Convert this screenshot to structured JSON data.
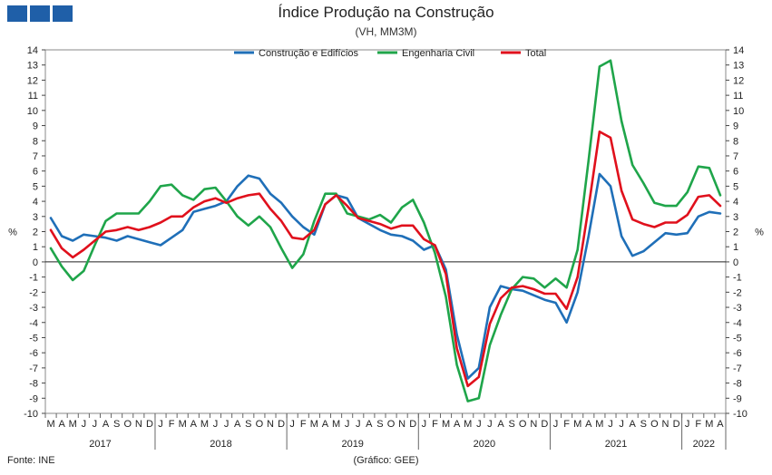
{
  "page": {
    "title": "Índice Produção na Construção",
    "subtitle": "(VH, MM3M)",
    "source": "Fonte: INE",
    "credit": "(Gráfico: GEE)"
  },
  "colors": {
    "logo": "#1f5fa8"
  },
  "chart_data": {
    "type": "line",
    "title": "Índice Produção na Construção",
    "subtitle": "(VH, MM3M)",
    "ylabel": "%",
    "ylim": [
      -10,
      14
    ],
    "yticks": [
      -10,
      -9,
      -8,
      -7,
      -6,
      -5,
      -4,
      -3,
      -2,
      -1,
      0,
      1,
      2,
      3,
      4,
      5,
      6,
      7,
      8,
      9,
      10,
      11,
      12,
      13,
      14
    ],
    "grid": false,
    "legend": "top-center",
    "x": [
      "M",
      "A",
      "M",
      "J",
      "J",
      "A",
      "S",
      "O",
      "N",
      "D",
      "J",
      "F",
      "M",
      "A",
      "M",
      "J",
      "J",
      "A",
      "S",
      "O",
      "N",
      "D",
      "J",
      "F",
      "M",
      "A",
      "M",
      "J",
      "J",
      "A",
      "S",
      "O",
      "N",
      "D",
      "J",
      "F",
      "M",
      "A",
      "M",
      "J",
      "J",
      "A",
      "S",
      "O",
      "N",
      "D",
      "J",
      "F",
      "M",
      "A",
      "M",
      "J",
      "J",
      "A",
      "S",
      "O",
      "N",
      "D",
      "J",
      "F",
      "M",
      "A"
    ],
    "years": [
      {
        "label": "2017",
        "start": 0,
        "end": 9
      },
      {
        "label": "2018",
        "start": 10,
        "end": 21
      },
      {
        "label": "2019",
        "start": 22,
        "end": 33
      },
      {
        "label": "2020",
        "start": 34,
        "end": 45
      },
      {
        "label": "2021",
        "start": 46,
        "end": 57
      },
      {
        "label": "2022",
        "start": 58,
        "end": 61
      }
    ],
    "series": [
      {
        "name": "Construção e Edifícios",
        "color": "#1f6fb8",
        "values": [
          2.9,
          1.7,
          1.4,
          1.8,
          1.7,
          1.6,
          1.4,
          1.7,
          1.5,
          1.3,
          1.1,
          1.6,
          2.1,
          3.3,
          3.5,
          3.7,
          4.0,
          5.0,
          5.7,
          5.5,
          4.5,
          3.9,
          3.0,
          2.3,
          1.8,
          3.8,
          4.4,
          4.2,
          2.9,
          2.5,
          2.1,
          1.8,
          1.7,
          1.4,
          0.8,
          1.1,
          -0.5,
          -4.8,
          -7.7,
          -7.0,
          -3.0,
          -1.6,
          -1.8,
          -1.9,
          -2.2,
          -2.5,
          -2.7,
          -4.0,
          -2.0,
          1.7,
          5.8,
          5.0,
          1.7,
          0.4,
          0.7,
          1.3,
          1.9,
          1.8,
          1.9,
          3.0,
          3.3,
          3.2
        ]
      },
      {
        "name": "Engenharia Civil",
        "color": "#1fa54a",
        "values": [
          0.9,
          -0.3,
          -1.2,
          -0.6,
          1.1,
          2.7,
          3.2,
          3.2,
          3.2,
          4.0,
          5.0,
          5.1,
          4.4,
          4.1,
          4.8,
          4.9,
          4.0,
          3.0,
          2.4,
          3.0,
          2.3,
          0.9,
          -0.4,
          0.5,
          2.7,
          4.5,
          4.5,
          3.2,
          3.0,
          2.8,
          3.1,
          2.6,
          3.6,
          4.1,
          2.6,
          0.6,
          -2.3,
          -6.8,
          -9.2,
          -9.0,
          -5.5,
          -3.5,
          -1.8,
          -1.0,
          -1.1,
          -1.7,
          -1.1,
          -1.7,
          0.8,
          6.7,
          12.9,
          13.3,
          9.3,
          6.4,
          5.2,
          3.9,
          3.7,
          3.7,
          4.6,
          6.3,
          6.2,
          4.4
        ]
      },
      {
        "name": "Total",
        "color": "#e0101c",
        "values": [
          2.1,
          0.9,
          0.3,
          0.8,
          1.4,
          2.0,
          2.1,
          2.3,
          2.1,
          2.3,
          2.6,
          3.0,
          3.0,
          3.6,
          4.0,
          4.2,
          3.9,
          4.2,
          4.4,
          4.5,
          3.5,
          2.7,
          1.6,
          1.5,
          2.1,
          3.8,
          4.4,
          3.7,
          2.9,
          2.7,
          2.5,
          2.2,
          2.4,
          2.4,
          1.5,
          1.1,
          -0.8,
          -5.7,
          -8.2,
          -7.6,
          -4.1,
          -2.4,
          -1.7,
          -1.6,
          -1.8,
          -2.1,
          -2.1,
          -3.1,
          -1.0,
          3.6,
          8.6,
          8.2,
          4.7,
          2.8,
          2.5,
          2.3,
          2.6,
          2.6,
          3.1,
          4.3,
          4.4,
          3.7
        ]
      }
    ]
  }
}
